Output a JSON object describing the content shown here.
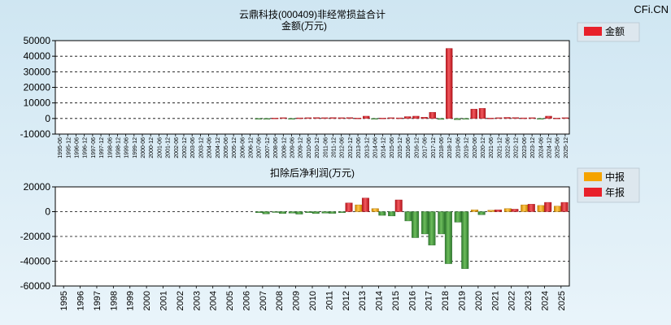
{
  "watermark": "CFi.CN",
  "chart_data": [
    {
      "type": "bar",
      "title": "云鼎科技(000409)非经常损益合计",
      "subtitle": "金额(万元)",
      "ylim": [
        -10000,
        50000
      ],
      "yticks": [
        50000,
        40000,
        30000,
        20000,
        10000,
        0,
        -10000
      ],
      "grid": true,
      "legend_position": "top-right",
      "categories": [
        "1995-06",
        "1995-12",
        "1996-06",
        "1996-12",
        "1997-06",
        "1997-12",
        "1998-06",
        "1998-12",
        "1999-06",
        "1999-12",
        "2000-06",
        "2000-12",
        "2001-06",
        "2001-12",
        "2002-06",
        "2002-12",
        "2003-06",
        "2003-12",
        "2004-06",
        "2004-12",
        "2005-06",
        "2005-12",
        "2006-06",
        "2006-12",
        "2007-06",
        "2007-12",
        "2008-06",
        "2008-12",
        "2009-06",
        "2009-12",
        "2010-06",
        "2010-12",
        "2011-06",
        "2011-12",
        "2012-06",
        "2012-12",
        "2013-06",
        "2013-12",
        "2014-06",
        "2014-12",
        "2015-06",
        "2015-12",
        "2016-06",
        "2016-12",
        "2017-06",
        "2017-12",
        "2018-06",
        "2018-12",
        "2019-06",
        "2019-12",
        "2020-06",
        "2020-12",
        "2021-06",
        "2021-12",
        "2022-06",
        "2022-12",
        "2023-06",
        "2023-12",
        "2024-06",
        "2024-12",
        "2025-06",
        "2025-12"
      ],
      "series": [
        {
          "name": "金额",
          "color": "#e8202a",
          "values": [
            0,
            0,
            0,
            0,
            0,
            0,
            0,
            0,
            0,
            0,
            0,
            0,
            0,
            0,
            0,
            0,
            0,
            0,
            0,
            0,
            0,
            0,
            0,
            0,
            -300,
            -500,
            300,
            500,
            -300,
            400,
            500,
            600,
            500,
            600,
            500,
            600,
            300,
            1500,
            -500,
            300,
            500,
            400,
            1200,
            1500,
            800,
            4000,
            -600,
            45000,
            -800,
            -400,
            6000,
            6500,
            300,
            500,
            700,
            600,
            400,
            500,
            -200,
            1500,
            300,
            500
          ]
        }
      ]
    },
    {
      "type": "bar",
      "title": "扣除后净利润(万元)",
      "ylim": [
        -60000,
        20000
      ],
      "yticks": [
        20000,
        0,
        -20000,
        -40000,
        -60000
      ],
      "grid": true,
      "legend_position": "top-right",
      "categories": [
        "1995",
        "1996",
        "1997",
        "1998",
        "1999",
        "2000",
        "2001",
        "2002",
        "2003",
        "2004",
        "2005",
        "2006",
        "2007",
        "2008",
        "2009",
        "2010",
        "2011",
        "2012",
        "2013",
        "2014",
        "2015",
        "2016",
        "2017",
        "2018",
        "2019",
        "2020",
        "2021",
        "2022",
        "2023",
        "2024",
        "2025"
      ],
      "series": [
        {
          "name": "中报",
          "color": "#f5a300",
          "values": [
            0,
            0,
            0,
            0,
            0,
            0,
            0,
            0,
            0,
            0,
            0,
            0,
            -800,
            -600,
            -1200,
            -800,
            -1200,
            -800,
            5500,
            2500,
            -3500,
            -7500,
            -18000,
            -18000,
            -8500,
            1500,
            1200,
            2500,
            5500,
            5000,
            4500
          ]
        },
        {
          "name": "年报",
          "color": "#e8202a",
          "values": [
            0,
            0,
            0,
            0,
            0,
            0,
            0,
            0,
            0,
            0,
            0,
            0,
            -1800,
            -1500,
            -2000,
            -1500,
            -1400,
            7000,
            11000,
            -3000,
            9500,
            -21000,
            -27000,
            -42000,
            -46000,
            -2500,
            1500,
            2000,
            6000,
            7500,
            7500
          ]
        }
      ]
    }
  ]
}
